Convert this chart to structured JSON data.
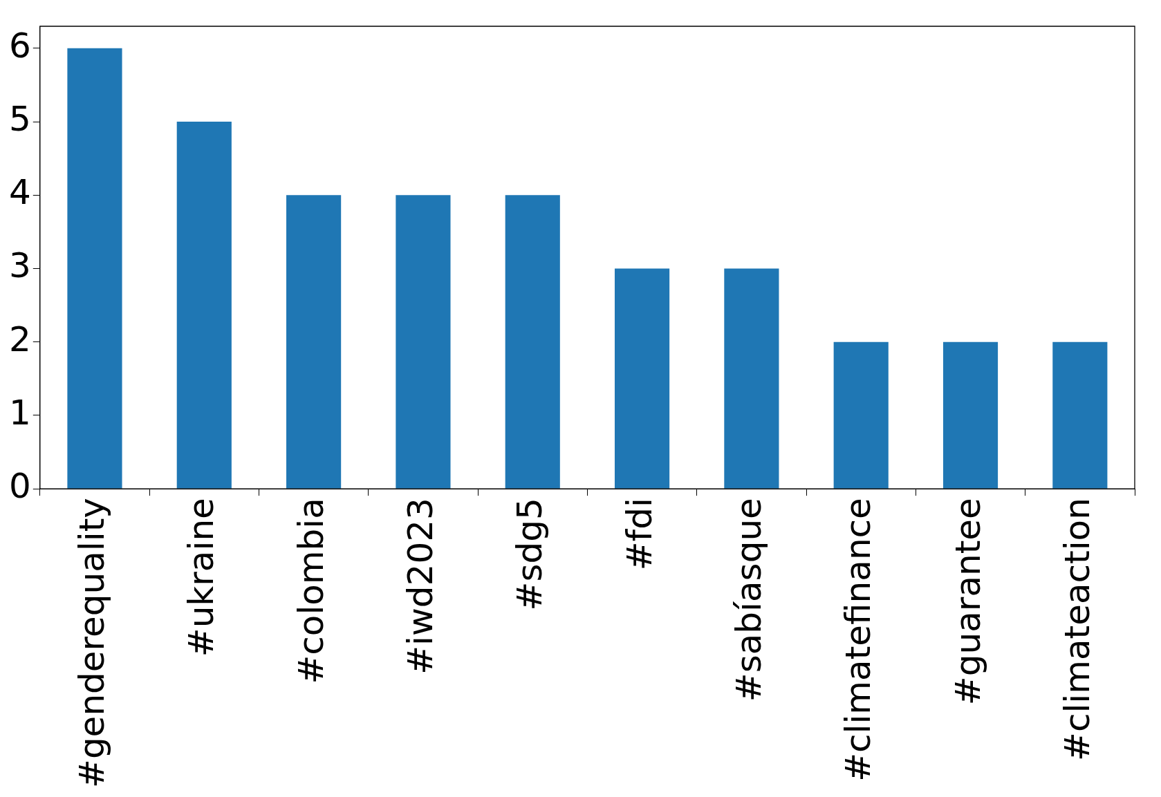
{
  "chart_data": {
    "type": "bar",
    "categories": [
      "#genderequality",
      "#ukraine",
      "#colombia",
      "#iwd2023",
      "#sdg5",
      "#fdi",
      "#sabíasque",
      "#climatefinance",
      "#guarantee",
      "#climateaction"
    ],
    "values": [
      6,
      5,
      4,
      4,
      4,
      3,
      3,
      2,
      2,
      2
    ],
    "color": "#1f77b4",
    "ylim": [
      0,
      6.3
    ],
    "yticks": [
      0,
      1,
      2,
      3,
      4,
      5,
      6
    ],
    "grid": false
  }
}
